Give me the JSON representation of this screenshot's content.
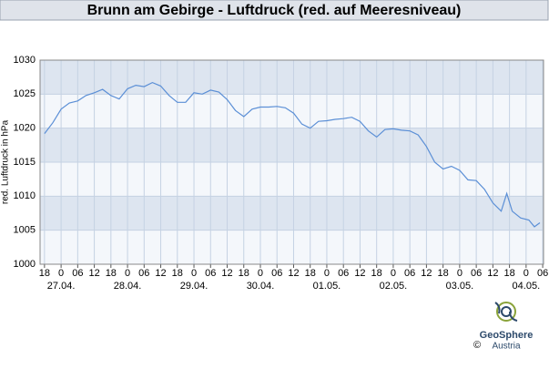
{
  "chart_data": {
    "type": "line",
    "title": "Brunn am Gebirge - Luftdruck (red. auf Meeresniveau)",
    "y_label": "red. Luftdruck in hPa",
    "x": [
      -6,
      -3,
      0,
      3,
      6,
      9,
      12,
      15,
      18,
      21,
      24,
      27,
      30,
      33,
      36,
      39,
      42,
      45,
      48,
      51,
      54,
      57,
      60,
      63,
      66,
      69,
      72,
      75,
      78,
      81,
      84,
      87,
      90,
      93,
      96,
      99,
      102,
      105,
      108,
      111,
      114,
      117,
      120,
      123,
      126,
      129,
      132,
      135,
      138,
      141,
      144,
      147,
      150,
      153,
      156,
      159,
      161,
      163,
      166,
      169,
      171,
      173
    ],
    "series": [
      {
        "name": "Luftdruck",
        "color": "#5b8fd6",
        "values": [
          1019.2,
          1020.8,
          1022.8,
          1023.7,
          1024.0,
          1024.8,
          1025.2,
          1025.7,
          1024.8,
          1024.3,
          1025.8,
          1026.3,
          1026.1,
          1026.7,
          1026.2,
          1024.8,
          1023.8,
          1023.8,
          1025.2,
          1025.0,
          1025.6,
          1025.3,
          1024.2,
          1022.6,
          1021.7,
          1022.8,
          1023.1,
          1023.1,
          1023.2,
          1023.0,
          1022.2,
          1020.6,
          1020.0,
          1021.0,
          1021.1,
          1021.3,
          1021.4,
          1021.6,
          1021.0,
          1019.6,
          1018.7,
          1019.8,
          1019.9,
          1019.7,
          1019.6,
          1019.0,
          1017.3,
          1015.0,
          1014.0,
          1014.4,
          1013.8,
          1012.4,
          1012.3,
          1011.0,
          1009.0,
          1007.8,
          1010.4,
          1007.8,
          1006.8,
          1006.5,
          1005.5,
          1006.1
        ]
      }
    ],
    "xlim": [
      -7.6,
      174.3
    ],
    "ylim": [
      1000,
      1030
    ],
    "yticks": [
      1000,
      1005,
      1010,
      1015,
      1020,
      1025,
      1030
    ],
    "xticks": [
      {
        "value": -6,
        "label": "18"
      },
      {
        "value": 0,
        "label": "0"
      },
      {
        "value": 6,
        "label": "06"
      },
      {
        "value": 12,
        "label": "12"
      },
      {
        "value": 18,
        "label": "18"
      },
      {
        "value": 24,
        "label": "0"
      },
      {
        "value": 30,
        "label": "06"
      },
      {
        "value": 36,
        "label": "12"
      },
      {
        "value": 42,
        "label": "18"
      },
      {
        "value": 48,
        "label": "0"
      },
      {
        "value": 54,
        "label": "06"
      },
      {
        "value": 60,
        "label": "12"
      },
      {
        "value": 66,
        "label": "18"
      },
      {
        "value": 72,
        "label": "0"
      },
      {
        "value": 78,
        "label": "06"
      },
      {
        "value": 84,
        "label": "12"
      },
      {
        "value": 90,
        "label": "18"
      },
      {
        "value": 96,
        "label": "0"
      },
      {
        "value": 102,
        "label": "06"
      },
      {
        "value": 108,
        "label": "12"
      },
      {
        "value": 114,
        "label": "18"
      },
      {
        "value": 120,
        "label": "0"
      },
      {
        "value": 126,
        "label": "06"
      },
      {
        "value": 132,
        "label": "12"
      },
      {
        "value": 138,
        "label": "18"
      },
      {
        "value": 144,
        "label": "0"
      },
      {
        "value": 150,
        "label": "06"
      },
      {
        "value": 156,
        "label": "12"
      },
      {
        "value": 162,
        "label": "18"
      },
      {
        "value": 168,
        "label": "0"
      },
      {
        "value": 174,
        "label": "06"
      }
    ],
    "x_date_labels": [
      {
        "value": 0,
        "label": "27.04."
      },
      {
        "value": 24,
        "label": "28.04."
      },
      {
        "value": 48,
        "label": "29.04."
      },
      {
        "value": 72,
        "label": "30.04."
      },
      {
        "value": 96,
        "label": "01.05."
      },
      {
        "value": 120,
        "label": "02.05."
      },
      {
        "value": 144,
        "label": "03.05."
      },
      {
        "value": 168,
        "label": "04.05."
      }
    ],
    "grid": true,
    "logo_name": "GeoSphere",
    "logo_sub": "Austria",
    "copyright": "©"
  }
}
